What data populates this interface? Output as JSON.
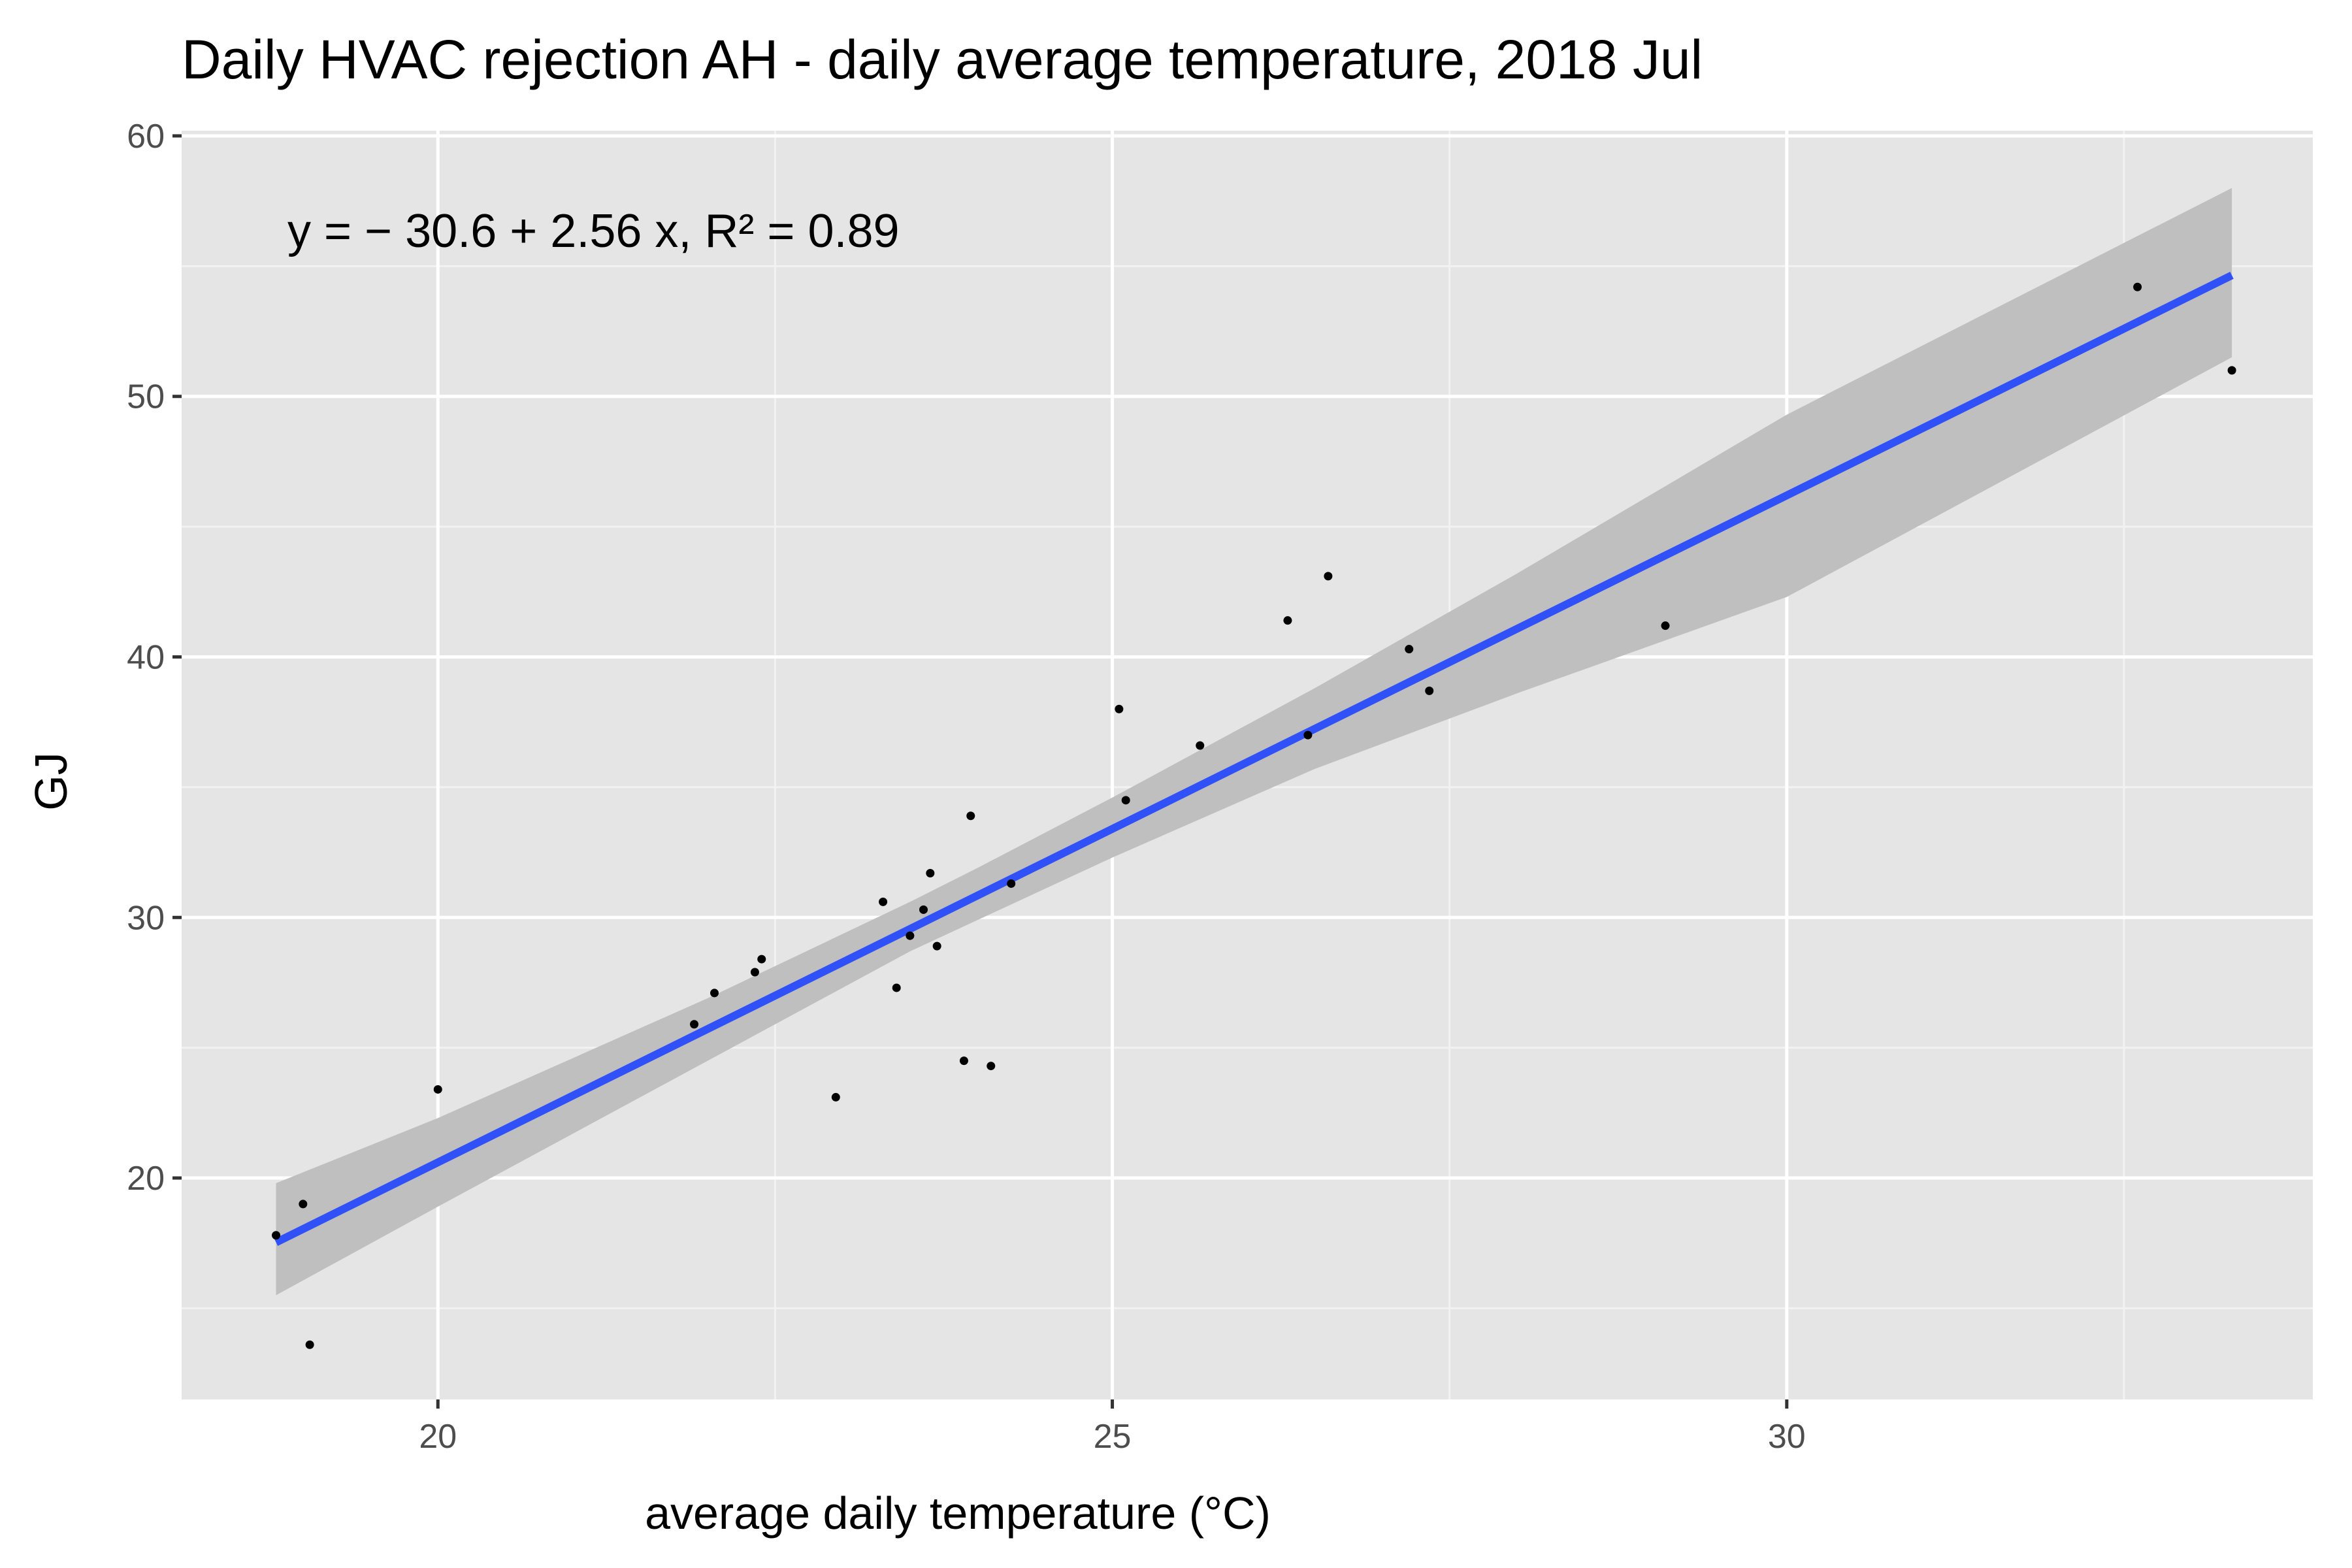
{
  "chart_data": {
    "type": "scatter",
    "title": "Daily HVAC rejection AH - daily average temperature, 2018 Jul",
    "xlabel": "average daily temperature (°C)",
    "ylabel": "GJ",
    "xlim": [
      18.1,
      33.9
    ],
    "ylim": [
      11.5,
      60.2
    ],
    "x_ticks": [
      20,
      25,
      30
    ],
    "x_tick_labels": [
      "20",
      "25",
      "30"
    ],
    "y_ticks": [
      20,
      30,
      40,
      50,
      60
    ],
    "y_tick_labels": [
      "20",
      "30",
      "40",
      "50",
      "60"
    ],
    "grid": true,
    "legend": "none",
    "annotation": "y = − 30.6 + 2.56 x, R² = 0.89",
    "points": [
      {
        "x": 18.8,
        "y": 17.8
      },
      {
        "x": 19.0,
        "y": 19.0
      },
      {
        "x": 19.05,
        "y": 13.6
      },
      {
        "x": 20.0,
        "y": 23.4
      },
      {
        "x": 21.9,
        "y": 25.9
      },
      {
        "x": 22.05,
        "y": 27.1
      },
      {
        "x": 22.35,
        "y": 27.9
      },
      {
        "x": 22.4,
        "y": 28.4
      },
      {
        "x": 22.95,
        "y": 23.1
      },
      {
        "x": 23.3,
        "y": 30.6
      },
      {
        "x": 23.4,
        "y": 27.3
      },
      {
        "x": 23.5,
        "y": 29.3
      },
      {
        "x": 23.6,
        "y": 30.3
      },
      {
        "x": 23.65,
        "y": 31.7
      },
      {
        "x": 23.7,
        "y": 28.9
      },
      {
        "x": 23.9,
        "y": 24.5
      },
      {
        "x": 23.95,
        "y": 33.9
      },
      {
        "x": 24.1,
        "y": 24.3
      },
      {
        "x": 24.25,
        "y": 31.3
      },
      {
        "x": 25.05,
        "y": 38.0
      },
      {
        "x": 25.1,
        "y": 34.5
      },
      {
        "x": 25.65,
        "y": 36.6
      },
      {
        "x": 26.3,
        "y": 41.4
      },
      {
        "x": 26.45,
        "y": 37.0
      },
      {
        "x": 26.6,
        "y": 43.1
      },
      {
        "x": 27.2,
        "y": 40.3
      },
      {
        "x": 27.35,
        "y": 38.7
      },
      {
        "x": 29.1,
        "y": 41.2
      },
      {
        "x": 32.6,
        "y": 54.2
      },
      {
        "x": 33.3,
        "y": 51.0
      }
    ],
    "fit": {
      "intercept": -30.6,
      "slope": 2.56,
      "x_range": [
        18.8,
        33.3
      ],
      "confidence_band": [
        {
          "x": 18.8,
          "lower": 15.5,
          "upper": 19.8
        },
        {
          "x": 20.0,
          "lower": 18.9,
          "upper": 22.3
        },
        {
          "x": 22.0,
          "lower": 24.5,
          "upper": 26.9
        },
        {
          "x": 23.5,
          "lower": 28.7,
          "upper": 30.6
        },
        {
          "x": 24.0,
          "lower": 29.9,
          "upper": 31.9
        },
        {
          "x": 25.0,
          "lower": 32.3,
          "upper": 34.6
        },
        {
          "x": 26.5,
          "lower": 35.7,
          "upper": 38.8
        },
        {
          "x": 28.0,
          "lower": 38.6,
          "upper": 43.2
        },
        {
          "x": 30.0,
          "lower": 42.3,
          "upper": 49.3
        },
        {
          "x": 33.3,
          "lower": 51.5,
          "upper": 58.0
        }
      ]
    },
    "colors": {
      "panel_background": "#e5e5e5",
      "grid_major": "#ffffff",
      "grid_minor": "#f2f2f2",
      "points": "#000000",
      "fit_line": "#3050f8",
      "confidence_band": "#bfbfbf"
    }
  }
}
